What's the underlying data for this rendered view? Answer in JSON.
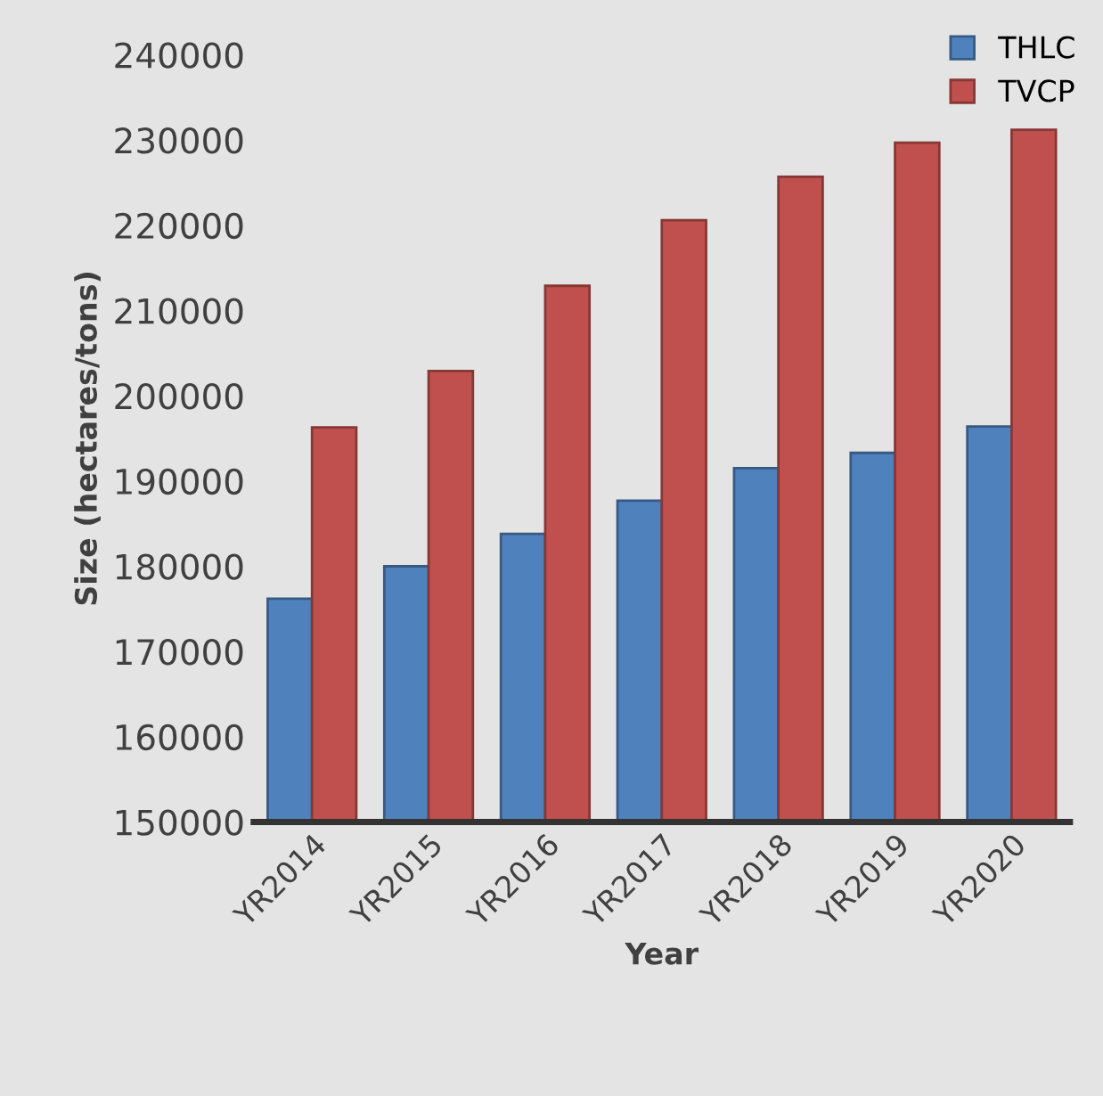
{
  "chart_data": {
    "type": "bar",
    "xlabel": "Year",
    "ylabel": "Size (hectares/tons)",
    "categories": [
      "YR2014",
      "YR2015",
      "YR2016",
      "YR2017",
      "YR2018",
      "YR2019",
      "YR2020"
    ],
    "series": [
      {
        "name": "THLC",
        "color": "#4f81bd",
        "values": [
          176200,
          180000,
          183800,
          187700,
          191500,
          193300,
          196400
        ]
      },
      {
        "name": "TVCP",
        "color": "#c0504d",
        "values": [
          196300,
          202900,
          212900,
          220600,
          225700,
          229700,
          231200
        ]
      }
    ],
    "ylim": [
      150000,
      240000
    ],
    "yticks": [
      150000,
      160000,
      170000,
      180000,
      190000,
      200000,
      210000,
      220000,
      230000,
      240000
    ],
    "grid": false,
    "legend": "top right"
  }
}
